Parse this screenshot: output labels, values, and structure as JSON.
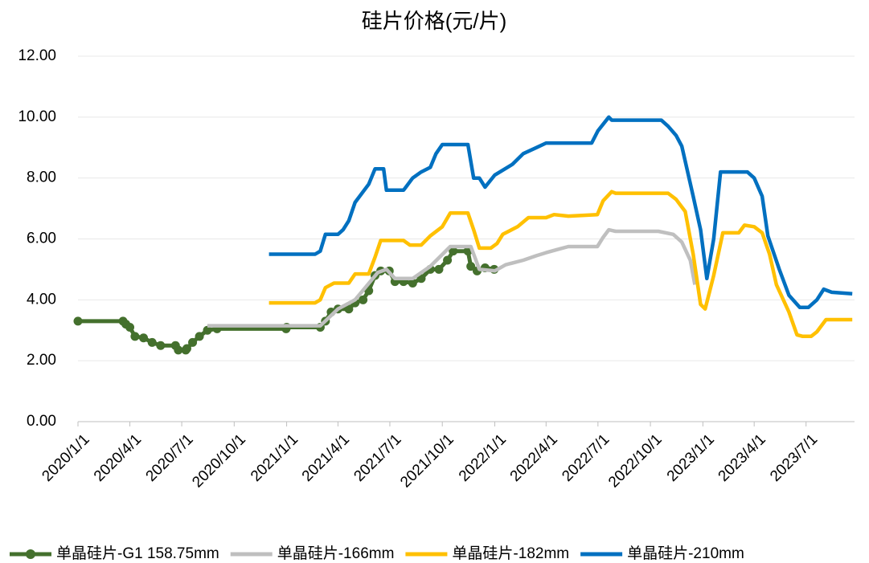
{
  "chart_data": {
    "type": "line",
    "title": "硅片价格(元/片)",
    "xlim": [
      "2020/1/1",
      "2023/9/24"
    ],
    "xticks": [
      "2020/1/1",
      "2020/4/1",
      "2020/7/1",
      "2020/10/1",
      "2021/1/1",
      "2021/4/1",
      "2021/7/1",
      "2021/10/1",
      "2022/1/1",
      "2022/4/1",
      "2022/7/1",
      "2022/10/1",
      "2023/1/1",
      "2023/4/1",
      "2023/7/1"
    ],
    "ylim": [
      0,
      12
    ],
    "yticks": [
      {
        "value": 0,
        "label": "0.00"
      },
      {
        "value": 2,
        "label": "2.00"
      },
      {
        "value": 4,
        "label": "4.00"
      },
      {
        "value": 6,
        "label": "6.00"
      },
      {
        "value": 8,
        "label": "8.00"
      },
      {
        "value": 10,
        "label": "10.00"
      },
      {
        "value": 12,
        "label": "12.00"
      }
    ],
    "grid": true,
    "legend": "bottom",
    "series": [
      {
        "name": "单晶硅片-G1 158.75mm",
        "color": "#44702d",
        "markers": true,
        "x": [
          "2020/1/1",
          "2020/3/20",
          "2020/3/25",
          "2020/4/1",
          "2020/4/10",
          "2020/4/25",
          "2020/5/10",
          "2020/5/25",
          "2020/6/20",
          "2020/6/25",
          "2020/7/8",
          "2020/7/10",
          "2020/7/20",
          "2020/8/1",
          "2020/8/15",
          "2020/9/1",
          "2020/12/31",
          "2021/1/1",
          "2021/3/1",
          "2021/3/10",
          "2021/3/20",
          "2021/4/1",
          "2021/4/20",
          "2021/5/1",
          "2021/5/15",
          "2021/5/25",
          "2021/6/5",
          "2021/6/15",
          "2021/6/30",
          "2021/7/10",
          "2021/7/25",
          "2021/8/10",
          "2021/8/25",
          "2021/9/10",
          "2021/9/25",
          "2021/10/10",
          "2021/10/20",
          "2021/11/15",
          "2021/11/20",
          "2021/12/1",
          "2021/12/15",
          "2021/12/31"
        ],
        "values": [
          3.3,
          3.3,
          3.2,
          3.1,
          2.8,
          2.75,
          2.6,
          2.5,
          2.5,
          2.35,
          2.35,
          2.4,
          2.6,
          2.8,
          3.0,
          3.05,
          3.05,
          3.1,
          3.1,
          3.3,
          3.6,
          3.7,
          3.7,
          3.9,
          4.0,
          4.3,
          4.8,
          4.95,
          4.95,
          4.6,
          4.6,
          4.55,
          4.7,
          5.0,
          5.0,
          5.3,
          5.6,
          5.6,
          5.1,
          4.95,
          5.05,
          5.0
        ]
      },
      {
        "name": "单晶硅片-166mm",
        "color": "#bfbfbf",
        "x": [
          "2020/8/15",
          "2021/3/1",
          "2021/4/1",
          "2021/5/1",
          "2021/6/10",
          "2021/6/25",
          "2021/7/10",
          "2021/8/10",
          "2021/9/10",
          "2021/10/15",
          "2021/11/20",
          "2021/12/5",
          "2022/1/1",
          "2022/1/20",
          "2022/2/20",
          "2022/3/15",
          "2022/4/1",
          "2022/4/20",
          "2022/5/10",
          "2022/6/30",
          "2022/7/10",
          "2022/7/20",
          "2022/8/1",
          "2022/10/15",
          "2022/11/10",
          "2022/11/25",
          "2022/12/10",
          "2022/12/18"
        ],
        "values": [
          3.15,
          3.15,
          3.7,
          4.0,
          4.9,
          5.0,
          4.7,
          4.7,
          5.1,
          5.75,
          5.75,
          5.0,
          4.95,
          5.15,
          5.3,
          5.45,
          5.55,
          5.65,
          5.75,
          5.75,
          6.05,
          6.3,
          6.25,
          6.25,
          6.15,
          5.9,
          5.3,
          4.5
        ]
      },
      {
        "name": "单晶硅片-182mm",
        "color": "#ffc000",
        "x": [
          "2020/12/1",
          "2021/2/20",
          "2021/3/1",
          "2021/3/10",
          "2021/3/25",
          "2021/4/20",
          "2021/5/1",
          "2021/5/25",
          "2021/6/5",
          "2021/6/15",
          "2021/7/25",
          "2021/8/5",
          "2021/8/25",
          "2021/9/10",
          "2021/10/1",
          "2021/10/15",
          "2021/11/15",
          "2021/11/25",
          "2021/12/5",
          "2021/12/25",
          "2022/1/5",
          "2022/1/15",
          "2022/2/10",
          "2022/3/1",
          "2022/4/1",
          "2022/4/15",
          "2022/5/10",
          "2022/6/30",
          "2022/7/10",
          "2022/7/25",
          "2022/8/1",
          "2022/11/1",
          "2022/11/15",
          "2022/12/1",
          "2022/12/15",
          "2022/12/28",
          "2023/1/5",
          "2023/1/20",
          "2023/2/5",
          "2023/3/5",
          "2023/3/15",
          "2023/4/1",
          "2023/4/15",
          "2023/4/28",
          "2023/5/10",
          "2023/6/1",
          "2023/6/15",
          "2023/6/25",
          "2023/7/10",
          "2023/7/20",
          "2023/8/5",
          "2023/9/20"
        ],
        "values": [
          3.9,
          3.9,
          4.0,
          4.4,
          4.55,
          4.55,
          4.85,
          4.85,
          5.4,
          5.95,
          5.95,
          5.8,
          5.8,
          6.1,
          6.4,
          6.85,
          6.85,
          6.3,
          5.7,
          5.7,
          5.85,
          6.15,
          6.4,
          6.7,
          6.7,
          6.8,
          6.75,
          6.8,
          7.25,
          7.55,
          7.5,
          7.5,
          7.3,
          6.9,
          5.5,
          3.85,
          3.7,
          4.8,
          6.2,
          6.2,
          6.45,
          6.4,
          6.2,
          5.5,
          4.5,
          3.6,
          2.85,
          2.8,
          2.8,
          2.95,
          3.35,
          3.35
        ]
      },
      {
        "name": "单晶硅片-210mm",
        "color": "#0070c0",
        "x": [
          "2020/12/1",
          "2021/2/20",
          "2021/3/1",
          "2021/3/10",
          "2021/4/1",
          "2021/4/10",
          "2021/4/20",
          "2021/5/1",
          "2021/5/25",
          "2021/6/5",
          "2021/6/20",
          "2021/6/25",
          "2021/7/25",
          "2021/8/10",
          "2021/8/25",
          "2021/9/10",
          "2021/9/20",
          "2021/10/1",
          "2021/11/15",
          "2021/11/25",
          "2021/12/5",
          "2021/12/15",
          "2022/1/1",
          "2022/2/1",
          "2022/2/20",
          "2022/3/15",
          "2022/4/1",
          "2022/6/20",
          "2022/7/1",
          "2022/7/20",
          "2022/7/25",
          "2022/10/20",
          "2022/11/1",
          "2022/11/15",
          "2022/11/25",
          "2022/12/15",
          "2022/12/28",
          "2023/1/8",
          "2023/1/20",
          "2023/2/1",
          "2023/3/20",
          "2023/4/1",
          "2023/4/15",
          "2023/4/25",
          "2023/5/15",
          "2023/6/1",
          "2023/6/20",
          "2023/7/5",
          "2023/7/20",
          "2023/8/1",
          "2023/8/15",
          "2023/9/20"
        ],
        "values": [
          5.5,
          5.5,
          5.6,
          6.15,
          6.15,
          6.3,
          6.6,
          7.2,
          7.8,
          8.3,
          8.3,
          7.6,
          7.6,
          8.0,
          8.2,
          8.35,
          8.8,
          9.1,
          9.1,
          8.0,
          8.0,
          7.7,
          8.1,
          8.45,
          8.8,
          9.0,
          9.15,
          9.15,
          9.55,
          10.0,
          9.9,
          9.9,
          9.7,
          9.4,
          9.05,
          7.4,
          6.3,
          4.7,
          6.0,
          8.2,
          8.2,
          8.0,
          7.4,
          6.1,
          5.0,
          4.15,
          3.75,
          3.75,
          4.0,
          4.35,
          4.25,
          4.2
        ]
      }
    ]
  }
}
